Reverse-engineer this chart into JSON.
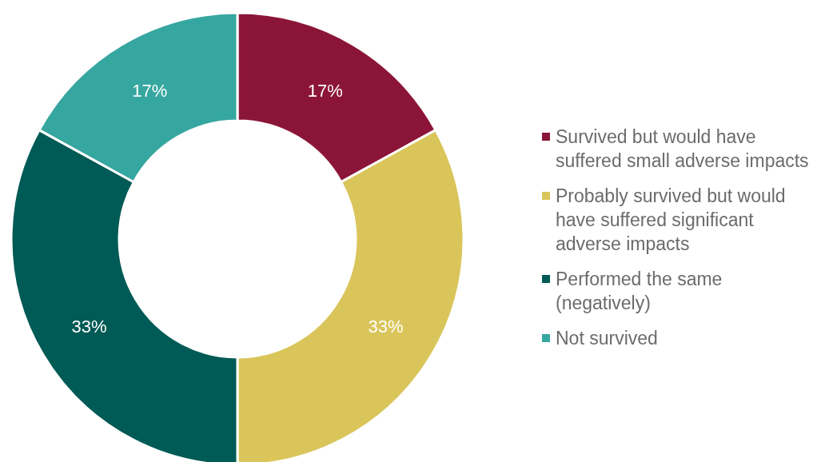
{
  "chart_data": {
    "type": "donut",
    "categories": [
      "Survived but would have suffered small adverse impacts",
      "Probably survived but would have suffered significant adverse impacts",
      "Performed the same (negatively)",
      "Not survived"
    ],
    "values": [
      17,
      33,
      33,
      17
    ],
    "colors": [
      "#8b1538",
      "#d9c55a",
      "#005a55",
      "#36a6a0"
    ],
    "value_labels": [
      "17%",
      "33%",
      "33%",
      "17%"
    ],
    "legend": "right"
  }
}
